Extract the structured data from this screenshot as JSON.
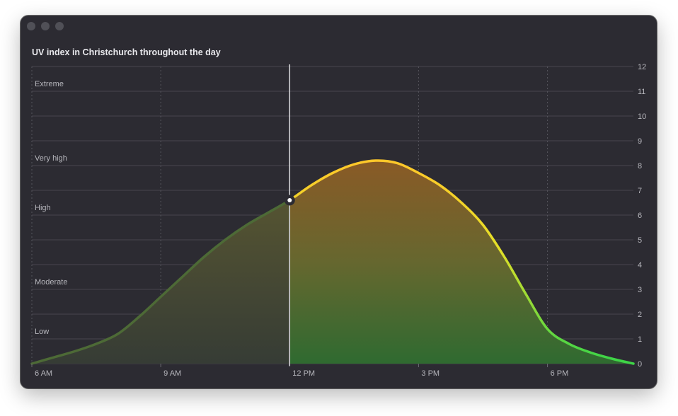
{
  "window": {
    "title": "UV index in Christchurch throughout the day"
  },
  "colors": {
    "background": "#2c2b32",
    "low": "#3fd447",
    "high": "#ffc72a",
    "cursor": "#d9d9dd"
  },
  "chart_data": {
    "type": "area",
    "title": "UV index in Christchurch throughout the day",
    "xlabel": "",
    "ylabel": "",
    "x_ticks": [
      "6 AM",
      "9 AM",
      "12 PM",
      "3 PM",
      "6 PM"
    ],
    "x_tick_hours": [
      6,
      9,
      12,
      15,
      18
    ],
    "xlim": [
      6,
      20
    ],
    "ylim": [
      0,
      12
    ],
    "y_ticks": [
      0,
      1,
      2,
      3,
      4,
      5,
      6,
      7,
      8,
      9,
      10,
      11,
      12
    ],
    "y_axis_position": "right",
    "grid": true,
    "levels": [
      {
        "label": "Extreme",
        "value": 11
      },
      {
        "label": "Very high",
        "value": 8
      },
      {
        "label": "High",
        "value": 6
      },
      {
        "label": "Moderate",
        "value": 3
      },
      {
        "label": "Low",
        "value": 1
      }
    ],
    "series": [
      {
        "x": [
          6,
          6.5,
          7,
          7.5,
          8,
          8.5,
          9,
          9.5,
          10,
          10.5,
          11,
          11.5,
          12,
          12.5,
          13,
          13.5,
          14,
          14.5,
          15,
          15.5,
          16,
          16.5,
          17,
          17.5,
          18,
          18.5,
          19,
          19.5,
          20
        ],
        "y": [
          0,
          0.25,
          0.5,
          0.8,
          1.2,
          1.9,
          2.7,
          3.5,
          4.3,
          5.0,
          5.6,
          6.1,
          6.6,
          7.2,
          7.7,
          8.05,
          8.2,
          8.1,
          7.7,
          7.2,
          6.5,
          5.6,
          4.3,
          2.8,
          1.4,
          0.8,
          0.45,
          0.2,
          0
        ]
      }
    ],
    "selected": {
      "x": 12,
      "y": 6.6
    }
  }
}
